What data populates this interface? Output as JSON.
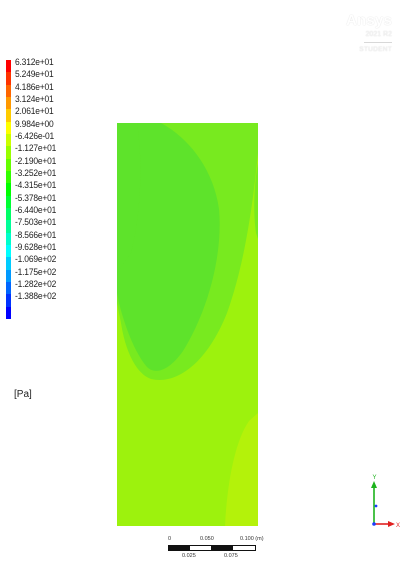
{
  "legend": {
    "labels": [
      "6.312e+01",
      "5.249e+01",
      "4.186e+01",
      "3.124e+01",
      "2.061e+01",
      "9.984e+00",
      "-6.426e-01",
      "-1.127e+01",
      "-2.190e+01",
      "-3.252e+01",
      "-4.315e+01",
      "-5.378e+01",
      "-6.440e+01",
      "-7.503e+01",
      "-8.566e+01",
      "-9.628e+01",
      "-1.069e+02",
      "-1.175e+02",
      "-1.282e+02",
      "-1.388e+02"
    ],
    "colors": [
      "#ff0000",
      "#ff3300",
      "#ff6600",
      "#ff9900",
      "#ffcc00",
      "#ffff00",
      "#ccff00",
      "#99ff00",
      "#66ff00",
      "#33ff00",
      "#00ff00",
      "#00ff33",
      "#00ff66",
      "#00ff99",
      "#00ffcc",
      "#00ffff",
      "#00ccff",
      "#0099ff",
      "#0066ff",
      "#0033ff",
      "#0000ff"
    ],
    "unit": "[Pa]"
  },
  "brand": {
    "logo": "Ansys",
    "version": "2021 R2",
    "edition": "STUDENT"
  },
  "scale": {
    "top_labels": [
      "0",
      "0.050",
      "0.100 (m)"
    ],
    "bottom_labels": [
      "0.025",
      "0.075"
    ]
  },
  "triad": {
    "y_label": "Y",
    "x_label": "X",
    "y_color": "#1db31d",
    "x_color": "#e02020",
    "z_color": "#1a3cff"
  },
  "contour": {
    "base_color": "#9df20d",
    "region_color": "#5ee32b",
    "region_edge_color": "#78ea1f",
    "corner_color": "#b4f20a"
  }
}
